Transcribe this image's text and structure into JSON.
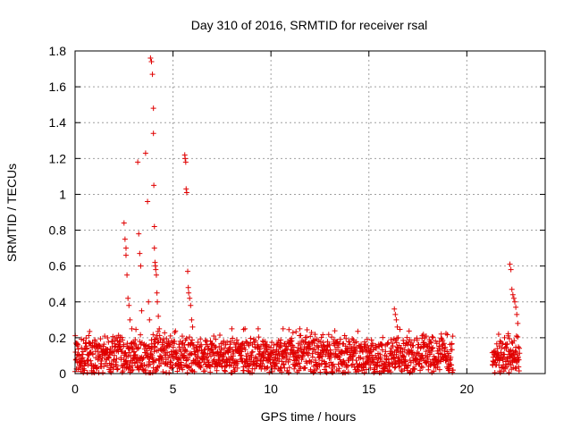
{
  "chart_data": {
    "type": "scatter",
    "title": "Day 310 of 2016, SRMTID for receiver rsal",
    "xlabel": "GPS time / hours",
    "ylabel": "SRMTID / TECUs",
    "xlim": [
      0,
      24
    ],
    "ylim": [
      0,
      1.8
    ],
    "x_ticks": [
      "0",
      "5",
      "10",
      "15",
      "20"
    ],
    "x_tick_values": [
      0,
      5,
      10,
      15,
      20
    ],
    "y_ticks": [
      "0",
      "0.2",
      "0.4",
      "0.6",
      "0.8",
      "1",
      "1.2",
      "1.4",
      "1.6",
      "1.8"
    ],
    "y_tick_values": [
      0,
      0.2,
      0.4,
      0.6,
      0.8,
      1.0,
      1.2,
      1.4,
      1.6,
      1.8
    ],
    "grid": true,
    "marker": "+",
    "color": "#e00000",
    "series": [
      {
        "x": [
          2.5,
          2.55,
          2.6,
          2.6,
          2.65,
          2.7,
          2.75,
          2.8,
          2.9,
          3.2,
          3.25,
          3.3,
          3.35,
          3.4,
          3.6,
          3.7,
          3.75,
          3.8,
          3.85,
          3.9,
          3.95,
          4.0,
          4.0,
          4.02,
          4.05,
          4.05,
          4.08,
          4.1,
          4.12,
          4.15,
          4.18,
          4.2,
          4.25,
          4.3,
          5.6,
          5.62,
          5.65,
          5.67,
          5.7,
          5.75,
          5.78,
          5.8,
          5.85,
          5.9,
          5.95,
          6.0,
          16.3,
          16.35,
          16.4,
          16.45,
          16.5,
          22.2,
          22.25,
          22.3,
          22.35,
          22.4,
          22.45,
          22.5,
          22.55,
          22.6
        ],
        "y": [
          0.84,
          0.75,
          0.7,
          0.66,
          0.55,
          0.42,
          0.38,
          0.3,
          0.25,
          1.18,
          0.78,
          0.67,
          0.6,
          0.35,
          1.23,
          0.96,
          0.4,
          0.3,
          1.76,
          1.74,
          1.67,
          1.48,
          1.34,
          1.05,
          0.82,
          0.7,
          0.62,
          0.6,
          0.58,
          0.55,
          0.45,
          0.4,
          0.32,
          0.25,
          1.22,
          1.2,
          1.18,
          1.03,
          1.01,
          0.57,
          0.48,
          0.45,
          0.42,
          0.38,
          0.3,
          0.26,
          0.36,
          0.33,
          0.3,
          0.26,
          0.2,
          0.61,
          0.58,
          0.47,
          0.44,
          0.42,
          0.4,
          0.37,
          0.33,
          0.28
        ],
        "baseline_ranges": [
          [
            0,
            19.3
          ],
          [
            21.3,
            22.7
          ]
        ],
        "baseline_range": [
          0.02,
          0.22
        ],
        "baseline_typical": 0.1
      }
    ]
  }
}
